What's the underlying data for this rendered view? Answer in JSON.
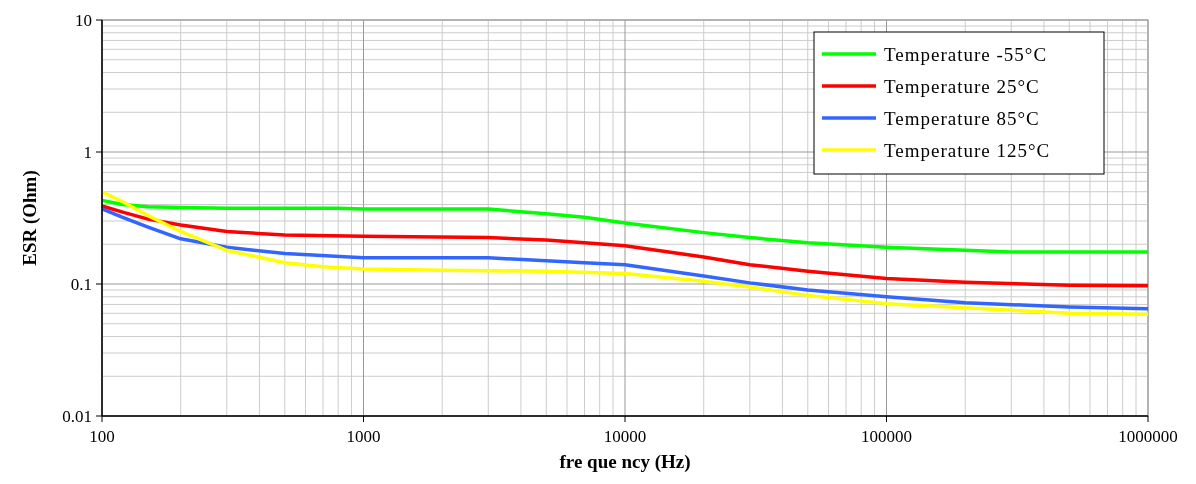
{
  "chart_data": {
    "type": "line",
    "xlabel": "fre que ncy (Hz)",
    "ylabel": "ESR (Ohm)",
    "log": "xy",
    "grid": true,
    "legend": "top right",
    "xlim": [
      100,
      1000000
    ],
    "ylim": [
      0.01,
      10
    ],
    "xticks": [
      100,
      1000,
      10000,
      100000,
      1000000
    ],
    "yticks": [
      0.01,
      0.1,
      1,
      10
    ],
    "series": [
      {
        "name": "Temperature -55°C",
        "color": "#00ff00",
        "x": [
          100,
          120,
          150,
          200,
          300,
          500,
          800,
          1000,
          2000,
          3000,
          5000,
          7000,
          10000,
          20000,
          30000,
          50000,
          100000,
          200000,
          300000,
          1000000
        ],
        "values": [
          0.43,
          0.4,
          0.385,
          0.38,
          0.375,
          0.375,
          0.375,
          0.37,
          0.37,
          0.37,
          0.34,
          0.32,
          0.29,
          0.245,
          0.225,
          0.205,
          0.19,
          0.18,
          0.175,
          0.175
        ]
      },
      {
        "name": "Temperature 25°C",
        "color": "#ff0000",
        "x": [
          100,
          120,
          150,
          200,
          300,
          500,
          1000,
          3000,
          5000,
          7000,
          10000,
          20000,
          30000,
          50000,
          100000,
          200000,
          500000,
          1000000
        ],
        "values": [
          0.39,
          0.35,
          0.31,
          0.28,
          0.25,
          0.235,
          0.23,
          0.225,
          0.215,
          0.205,
          0.195,
          0.16,
          0.14,
          0.125,
          0.11,
          0.103,
          0.098,
          0.097
        ]
      },
      {
        "name": "Temperature 85°C",
        "color": "#3366ff",
        "x": [
          100,
          120,
          150,
          200,
          300,
          500,
          1000,
          3000,
          5000,
          7000,
          10000,
          20000,
          30000,
          50000,
          100000,
          200000,
          500000,
          1000000
        ],
        "values": [
          0.37,
          0.32,
          0.27,
          0.22,
          0.19,
          0.17,
          0.158,
          0.158,
          0.15,
          0.145,
          0.14,
          0.115,
          0.102,
          0.09,
          0.08,
          0.072,
          0.067,
          0.065
        ]
      },
      {
        "name": "Temperature 125°C",
        "color": "#ffff00",
        "x": [
          100,
          120,
          150,
          200,
          300,
          500,
          700,
          1000,
          2000,
          5000,
          10000,
          20000,
          30000,
          50000,
          100000,
          200000,
          500000,
          1000000
        ],
        "values": [
          0.5,
          0.42,
          0.33,
          0.25,
          0.18,
          0.145,
          0.135,
          0.13,
          0.127,
          0.125,
          0.12,
          0.105,
          0.095,
          0.082,
          0.071,
          0.066,
          0.06,
          0.059
        ]
      }
    ]
  }
}
